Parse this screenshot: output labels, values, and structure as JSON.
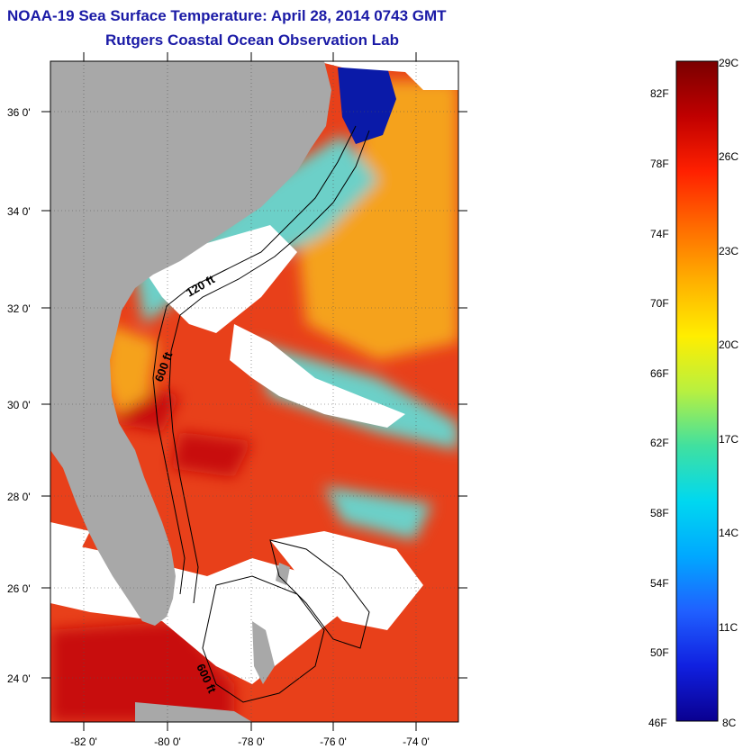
{
  "title": {
    "line1": "NOAA-19 Sea Surface Temperature:  April 28, 2014 0743 GMT",
    "line2": "Rutgers Coastal Ocean Observation Lab"
  },
  "map": {
    "lat_ticks": [
      "36 0'",
      "34 0'",
      "32 0'",
      "30 0'",
      "28 0'",
      "26 0'",
      "24 0'"
    ],
    "lon_ticks": [
      "-82 0'",
      "-80 0'",
      "-78 0'",
      "-76 0'",
      "-74 0'"
    ],
    "contour_labels": [
      "120 ft",
      "600 ft",
      "600 ft"
    ],
    "colors": {
      "land": "#a8a8a8",
      "cloud": "#ffffff",
      "warm": "#e8401a",
      "hot": "#c81010",
      "mild": "#f5a21e",
      "cool": "#6cd0c8",
      "cold": "#0a1aa8"
    }
  },
  "colorbar": {
    "f_labels": [
      "82F",
      "78F",
      "74F",
      "70F",
      "66F",
      "62F",
      "58F",
      "54F",
      "50F",
      "46F"
    ],
    "c_labels": [
      "29C",
      "26C",
      "23C",
      "20C",
      "17C",
      "14C",
      "11C",
      "8C"
    ],
    "gradient": [
      "#7a0000",
      "#c00000",
      "#ff2000",
      "#ff6a00",
      "#ffb000",
      "#ffee00",
      "#b8f040",
      "#40e0a0",
      "#00d8f0",
      "#00a8ff",
      "#2060ff",
      "#1020e0",
      "#0a0090"
    ]
  }
}
